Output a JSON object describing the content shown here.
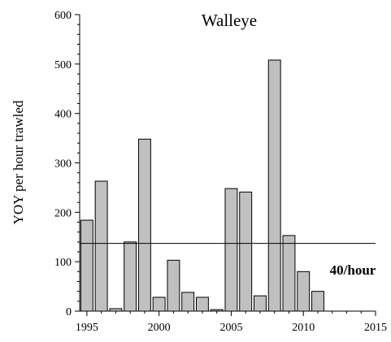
{
  "chart_data": {
    "type": "bar",
    "title": "Walleye",
    "ylabel": "YOY per hour trawled",
    "x": [
      1995,
      1996,
      1997,
      1998,
      1999,
      2000,
      2001,
      2002,
      2003,
      2004,
      2005,
      2006,
      2007,
      2008,
      2009,
      2010,
      2011
    ],
    "values": [
      184,
      263,
      5,
      140,
      348,
      28,
      103,
      38,
      28,
      3,
      248,
      241,
      31,
      508,
      153,
      80,
      40
    ],
    "color": "#c0c0c0",
    "xlim": [
      1994.5,
      2015
    ],
    "xticks": [
      1995,
      2000,
      2005,
      2010,
      2015
    ],
    "ylim": [
      0,
      600
    ],
    "yticks": [
      0,
      100,
      200,
      300,
      400,
      500,
      600
    ],
    "reference_line": {
      "value": 137,
      "label": "40/hour"
    }
  }
}
